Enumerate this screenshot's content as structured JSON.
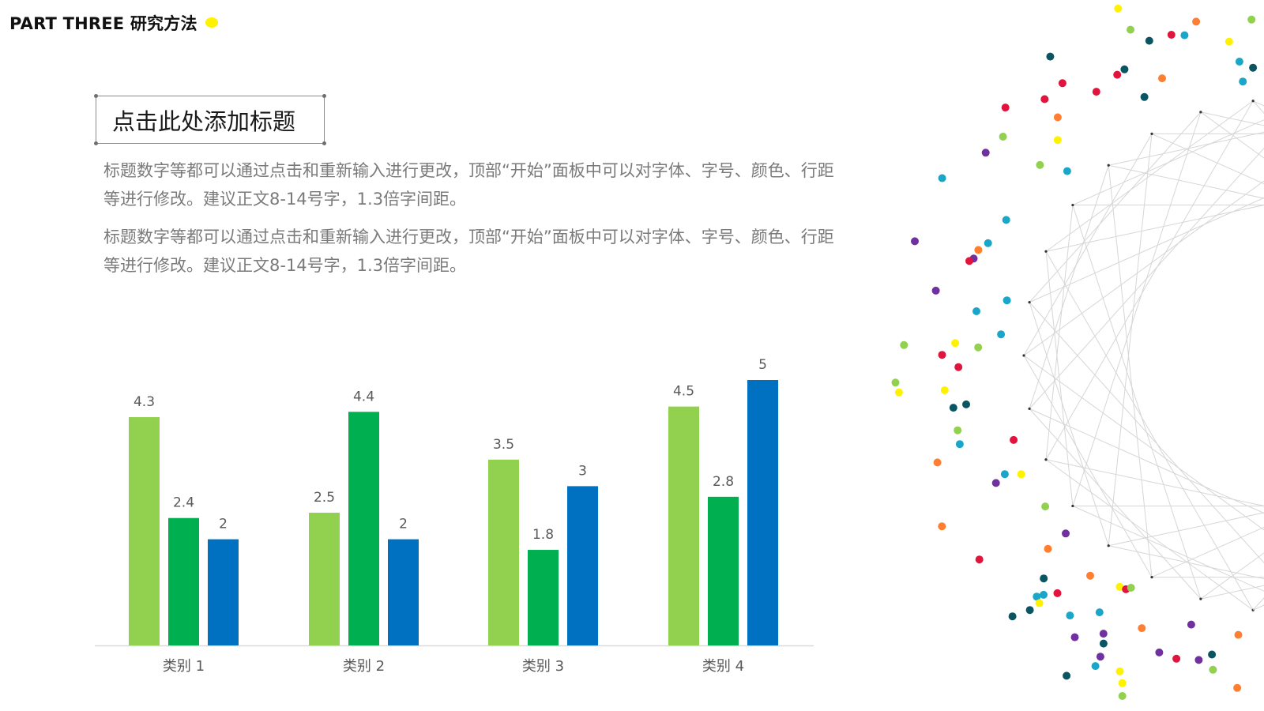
{
  "header": {
    "section_title": "PART THREE 研究方法"
  },
  "slide": {
    "title": "点击此处添加标题",
    "paragraphs": [
      "标题数字等都可以通过点击和重新输入进行更改，顶部“开始”面板中可以对字体、字号、颜色、行距等进行修改。建议正文8-14号字，1.3倍字间距。",
      "标题数字等都可以通过点击和重新输入进行更改，顶部“开始”面板中可以对字体、字号、颜色、行距等进行修改。建议正文8-14号字，1.3倍字间距。"
    ]
  },
  "colors": {
    "header_dot": "#fff200",
    "series_1": "#92d050",
    "series_2": "#00b050",
    "series_3": "#0070c0",
    "axis": "#d9d9d9",
    "label_text": "#595959",
    "decor_lines": "#d6d6d6",
    "confetti": [
      "#e0143c",
      "#7030a0",
      "#1aa6c8",
      "#0b5563",
      "#92d050",
      "#ff7f32",
      "#fff200"
    ]
  },
  "chart_data": {
    "type": "bar",
    "categories": [
      "类别 1",
      "类别 2",
      "类别 3",
      "类别 4"
    ],
    "series": [
      {
        "values": [
          4.3,
          2.5,
          3.5,
          4.5
        ]
      },
      {
        "values": [
          2.4,
          4.4,
          1.8,
          2.8
        ]
      },
      {
        "values": [
          2,
          2,
          3,
          5
        ]
      }
    ],
    "value_labels": [
      [
        "4.3",
        "2.5",
        "3.5",
        "4.5"
      ],
      [
        "2.4",
        "4.4",
        "1.8",
        "2.8"
      ],
      [
        "2",
        "2",
        "3",
        "5"
      ]
    ],
    "ylim": [
      0,
      5
    ],
    "grid": false,
    "legend": "none",
    "data_labels": true
  }
}
